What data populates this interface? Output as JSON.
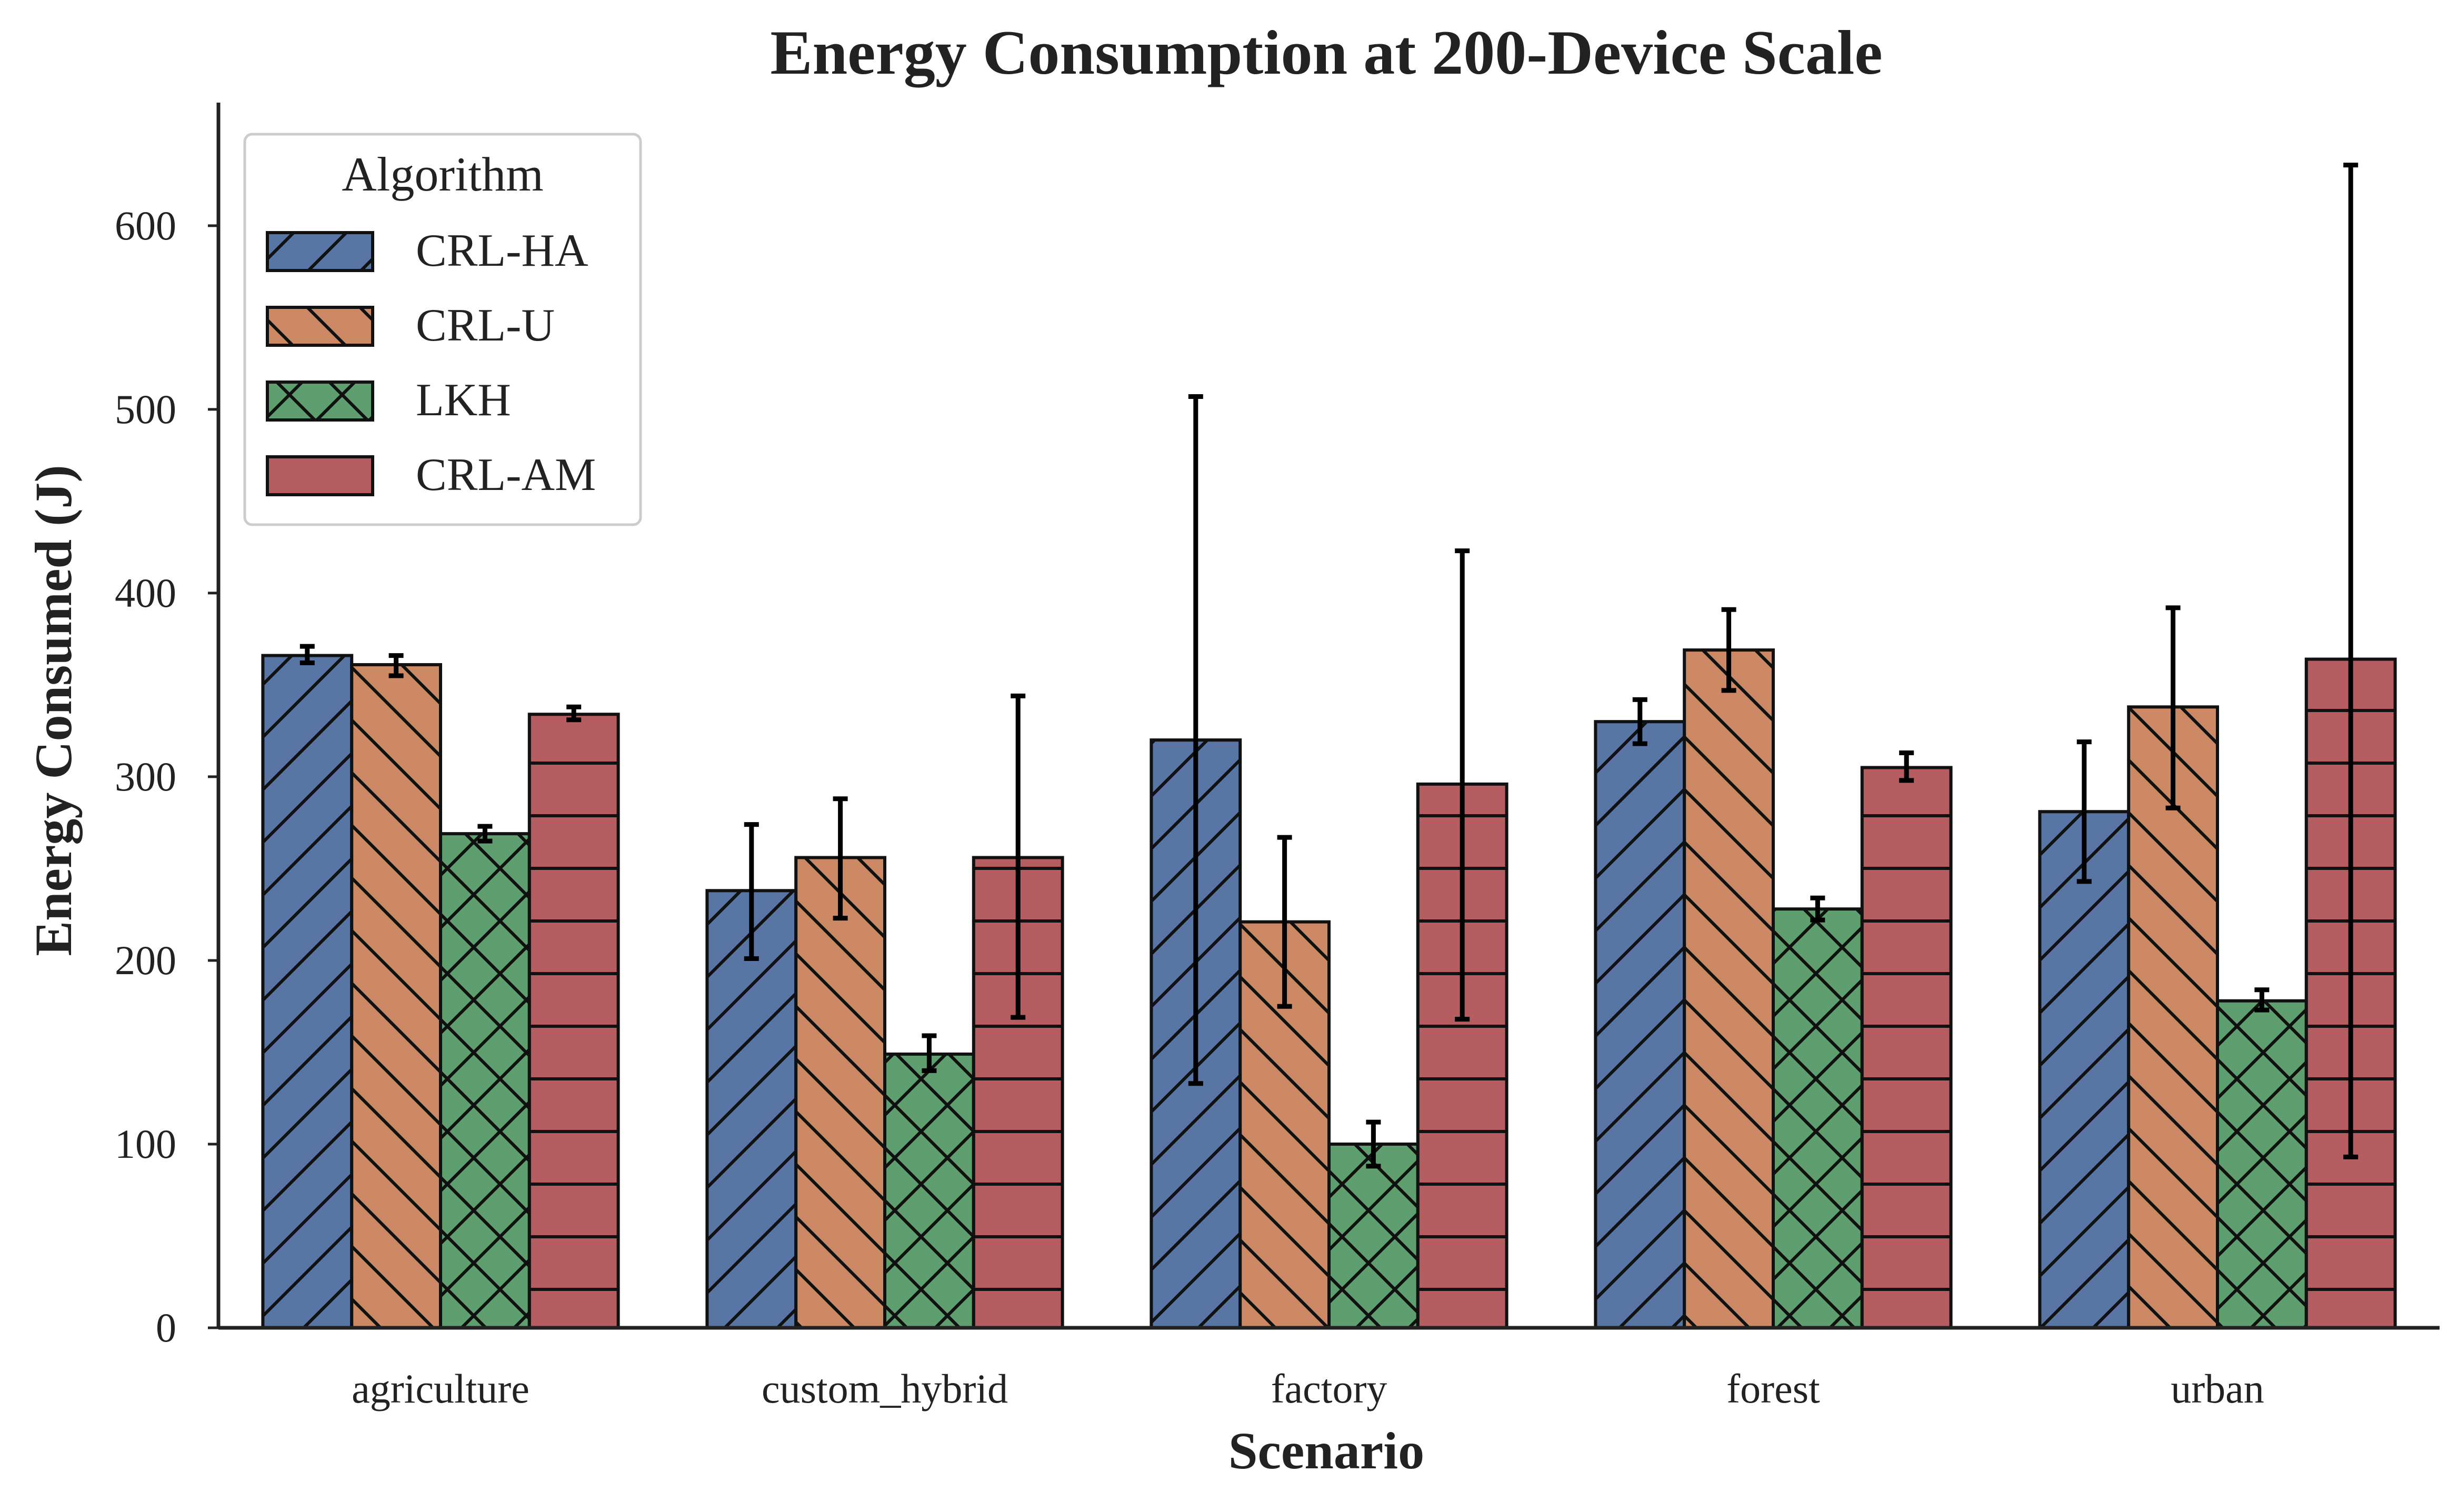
{
  "chart_data": {
    "type": "bar",
    "title": "Energy Consumption at 200-Device Scale",
    "xlabel": "Scenario",
    "ylabel": "Energy Consumed (J)",
    "ylim": [
      0,
      667
    ],
    "yticks": [
      0,
      100,
      200,
      300,
      400,
      500,
      600
    ],
    "categories": [
      "agriculture",
      "custom_hybrid",
      "factory",
      "forest",
      "urban"
    ],
    "legend": {
      "title": "Algorithm",
      "placement": "top-left"
    },
    "series": [
      {
        "name": "CRL-HA",
        "color": "#5875a4",
        "hatch": "forward-diagonal",
        "values": [
          366,
          238,
          320,
          330,
          281
        ],
        "error": [
          [
            362,
            371
          ],
          [
            201,
            274
          ],
          [
            133,
            507
          ],
          [
            318,
            342
          ],
          [
            243,
            319
          ]
        ]
      },
      {
        "name": "CRL-U",
        "color": "#cc8963",
        "hatch": "back-diagonal",
        "values": [
          361,
          256,
          221,
          369,
          338
        ],
        "error": [
          [
            355,
            366
          ],
          [
            223,
            288
          ],
          [
            175,
            267
          ],
          [
            347,
            391
          ],
          [
            283,
            392
          ]
        ]
      },
      {
        "name": "LKH",
        "color": "#5f9e6e",
        "hatch": "cross",
        "values": [
          269,
          149,
          100,
          228,
          178
        ],
        "error": [
          [
            265,
            273
          ],
          [
            140,
            159
          ],
          [
            88,
            112
          ],
          [
            222,
            234
          ],
          [
            173,
            184
          ]
        ]
      },
      {
        "name": "CRL-AM",
        "color": "#b55d60",
        "hatch": "horizontal",
        "values": [
          334,
          256,
          296,
          305,
          364
        ],
        "error": [
          [
            331,
            338
          ],
          [
            169,
            344
          ],
          [
            168,
            423
          ],
          [
            298,
            313
          ],
          [
            93,
            633
          ]
        ]
      }
    ]
  }
}
